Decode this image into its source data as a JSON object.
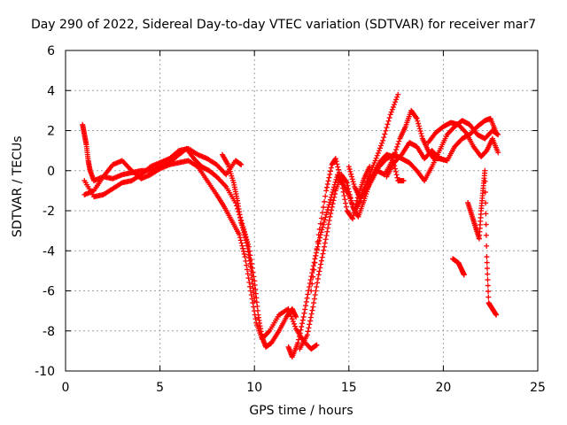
{
  "chart_data": {
    "type": "scatter",
    "title": "Day 290 of 2022, Sidereal Day-to-day VTEC variation (SDTVAR) for receiver mar7",
    "xlabel": "GPS time / hours",
    "ylabel": "SDTVAR / TECUs",
    "xlim": [
      0,
      25
    ],
    "ylim": [
      -10,
      6
    ],
    "xticks": [
      0,
      5,
      10,
      15,
      20,
      25
    ],
    "yticks": [
      -10,
      -8,
      -6,
      -4,
      -2,
      0,
      2,
      4,
      6
    ],
    "grid": true,
    "marker": "+",
    "color": "#ff0000",
    "series": [
      {
        "points": [
          [
            0.9,
            2.3
          ],
          [
            1.0,
            1.8
          ],
          [
            1.1,
            1.3
          ],
          [
            1.2,
            0.5
          ],
          [
            1.3,
            0.0
          ],
          [
            1.5,
            -0.5
          ],
          [
            2.0,
            -0.3
          ],
          [
            2.5,
            -0.4
          ],
          [
            3.0,
            -0.2
          ],
          [
            3.5,
            -0.1
          ],
          [
            4.0,
            0.0
          ],
          [
            4.5,
            0.0
          ],
          [
            5.0,
            0.2
          ],
          [
            5.5,
            0.4
          ],
          [
            6.0,
            0.8
          ],
          [
            6.4,
            1.1
          ],
          [
            6.8,
            0.6
          ],
          [
            7.2,
            0.2
          ],
          [
            7.6,
            0.0
          ],
          [
            8.0,
            -0.3
          ],
          [
            8.5,
            -0.8
          ],
          [
            9.0,
            -1.6
          ],
          [
            9.4,
            -2.8
          ],
          [
            9.7,
            -3.8
          ],
          [
            10.0,
            -5.5
          ],
          [
            10.2,
            -7.2
          ],
          [
            10.4,
            -8.3
          ],
          [
            10.6,
            -8.8
          ],
          [
            10.9,
            -8.6
          ],
          [
            11.3,
            -8.0
          ],
          [
            11.7,
            -7.3
          ],
          [
            12.0,
            -6.9
          ],
          [
            12.2,
            -7.3
          ]
        ]
      },
      {
        "points": [
          [
            1.0,
            -1.2
          ],
          [
            1.5,
            -1.0
          ],
          [
            2.0,
            -0.3
          ],
          [
            2.5,
            0.3
          ],
          [
            3.0,
            0.5
          ],
          [
            3.5,
            0.0
          ],
          [
            4.0,
            -0.4
          ],
          [
            4.5,
            -0.2
          ],
          [
            5.0,
            0.1
          ],
          [
            5.5,
            0.3
          ],
          [
            6.0,
            0.4
          ],
          [
            6.5,
            0.5
          ],
          [
            7.0,
            0.2
          ],
          [
            7.5,
            -0.5
          ],
          [
            8.0,
            -1.2
          ],
          [
            8.4,
            -1.8
          ],
          [
            8.8,
            -2.5
          ],
          [
            9.2,
            -3.2
          ],
          [
            9.5,
            -4.3
          ],
          [
            9.8,
            -6.0
          ],
          [
            10.1,
            -7.6
          ],
          [
            10.4,
            -8.4
          ],
          [
            10.8,
            -8.0
          ],
          [
            11.3,
            -7.2
          ],
          [
            11.8,
            -6.9
          ],
          [
            12.2,
            -7.9
          ],
          [
            12.6,
            -8.5
          ],
          [
            13.0,
            -8.9
          ],
          [
            13.3,
            -8.7
          ]
        ]
      },
      {
        "points": [
          [
            1.0,
            -0.5
          ],
          [
            1.5,
            -1.3
          ],
          [
            2.0,
            -1.2
          ],
          [
            2.5,
            -0.9
          ],
          [
            3.0,
            -0.6
          ],
          [
            3.5,
            -0.5
          ],
          [
            4.0,
            -0.2
          ],
          [
            4.5,
            0.2
          ],
          [
            5.0,
            0.4
          ],
          [
            5.5,
            0.6
          ],
          [
            6.0,
            1.0
          ],
          [
            6.5,
            1.1
          ],
          [
            7.0,
            0.8
          ],
          [
            7.5,
            0.6
          ],
          [
            8.0,
            0.3
          ],
          [
            8.5,
            -0.2
          ],
          [
            9.0,
            0.5
          ],
          [
            9.3,
            0.3
          ]
        ]
      },
      {
        "points": [
          [
            8.3,
            0.8
          ],
          [
            8.6,
            0.3
          ],
          [
            8.9,
            -0.6
          ],
          [
            9.1,
            -1.5
          ],
          [
            9.3,
            -2.6
          ],
          [
            9.6,
            -3.6
          ],
          [
            9.8,
            -4.8
          ],
          [
            10.0,
            -6.5
          ]
        ]
      },
      {
        "points": [
          [
            11.8,
            -8.8
          ],
          [
            12.0,
            -9.3
          ],
          [
            12.3,
            -8.6
          ],
          [
            12.6,
            -7.3
          ],
          [
            12.9,
            -5.8
          ],
          [
            13.2,
            -4.4
          ],
          [
            13.5,
            -3.2
          ],
          [
            13.8,
            -2.2
          ],
          [
            14.1,
            -1.2
          ],
          [
            14.4,
            -0.2
          ],
          [
            14.7,
            -0.7
          ],
          [
            15.0,
            -1.2
          ],
          [
            15.3,
            -2.0
          ],
          [
            15.6,
            -1.5
          ],
          [
            16.0,
            -0.4
          ],
          [
            16.4,
            0.5
          ],
          [
            16.8,
            1.5
          ],
          [
            17.2,
            2.8
          ],
          [
            17.6,
            3.8
          ]
        ]
      },
      {
        "points": [
          [
            12.4,
            -8.9
          ],
          [
            12.8,
            -8.2
          ],
          [
            13.1,
            -6.8
          ],
          [
            13.4,
            -5.2
          ],
          [
            13.7,
            -3.8
          ],
          [
            14.0,
            -2.3
          ],
          [
            14.3,
            -1.0
          ],
          [
            14.6,
            -0.2
          ],
          [
            14.9,
            -0.6
          ],
          [
            15.2,
            -1.8
          ],
          [
            15.5,
            -2.3
          ],
          [
            15.8,
            -1.5
          ],
          [
            16.1,
            -0.6
          ],
          [
            16.4,
            0.0
          ],
          [
            16.7,
            0.5
          ],
          [
            17.0,
            0.8
          ],
          [
            17.3,
            0.7
          ],
          [
            17.6,
            -0.5
          ],
          [
            17.9,
            -0.5
          ]
        ]
      },
      {
        "points": [
          [
            13.0,
            -6.0
          ],
          [
            13.4,
            -3.2
          ],
          [
            13.8,
            -1.0
          ],
          [
            14.1,
            0.3
          ],
          [
            14.3,
            0.6
          ],
          [
            14.6,
            -0.5
          ],
          [
            14.9,
            -2.0
          ],
          [
            15.2,
            -2.4
          ],
          [
            15.5,
            -1.2
          ],
          [
            15.8,
            -0.4
          ],
          [
            16.1,
            0.2
          ]
        ]
      },
      {
        "points": [
          [
            15.0,
            0.2
          ],
          [
            15.3,
            -0.8
          ],
          [
            15.6,
            -1.4
          ],
          [
            15.9,
            -0.8
          ],
          [
            16.2,
            -0.3
          ],
          [
            16.5,
            0.0
          ],
          [
            16.9,
            -0.2
          ],
          [
            17.3,
            0.5
          ],
          [
            17.7,
            1.6
          ],
          [
            18.0,
            2.2
          ],
          [
            18.3,
            3.0
          ],
          [
            18.6,
            2.6
          ],
          [
            18.9,
            1.6
          ],
          [
            19.2,
            1.0
          ],
          [
            19.5,
            0.6
          ],
          [
            19.9,
            0.6
          ]
        ]
      },
      {
        "points": [
          [
            15.8,
            -1.2
          ],
          [
            16.2,
            -0.5
          ],
          [
            16.6,
            0.2
          ],
          [
            17.0,
            0.6
          ],
          [
            17.4,
            0.8
          ],
          [
            17.8,
            0.6
          ],
          [
            18.2,
            0.4
          ],
          [
            18.6,
            0.0
          ],
          [
            19.0,
            -0.5
          ],
          [
            19.4,
            0.2
          ],
          [
            19.8,
            1.0
          ],
          [
            20.2,
            1.8
          ],
          [
            20.6,
            2.2
          ],
          [
            21.0,
            2.5
          ],
          [
            21.4,
            2.3
          ],
          [
            21.8,
            1.8
          ],
          [
            22.2,
            1.6
          ],
          [
            22.6,
            2.0
          ],
          [
            22.9,
            1.8
          ]
        ]
      },
      {
        "points": [
          [
            17.0,
            -0.3
          ],
          [
            17.4,
            0.4
          ],
          [
            17.8,
            0.8
          ],
          [
            18.2,
            1.4
          ],
          [
            18.6,
            1.2
          ],
          [
            19.0,
            0.6
          ],
          [
            19.4,
            1.0
          ],
          [
            19.8,
            0.6
          ],
          [
            20.2,
            0.5
          ],
          [
            20.6,
            1.2
          ],
          [
            21.0,
            1.6
          ],
          [
            21.4,
            1.8
          ],
          [
            21.8,
            2.2
          ],
          [
            22.2,
            2.5
          ],
          [
            22.5,
            2.6
          ],
          [
            22.8,
            1.9
          ]
        ]
      },
      {
        "points": [
          [
            19.2,
            1.4
          ],
          [
            19.6,
            1.9
          ],
          [
            20.0,
            2.2
          ],
          [
            20.4,
            2.4
          ],
          [
            20.8,
            2.3
          ],
          [
            21.2,
            1.9
          ],
          [
            21.6,
            1.2
          ],
          [
            22.0,
            0.7
          ],
          [
            22.3,
            1.0
          ],
          [
            22.6,
            1.6
          ],
          [
            22.9,
            0.9
          ]
        ]
      },
      {
        "points": [
          [
            21.3,
            -1.6
          ],
          [
            21.5,
            -2.2
          ],
          [
            21.7,
            -2.8
          ],
          [
            21.9,
            -3.4
          ],
          [
            22.0,
            -2.0
          ],
          [
            22.1,
            -1.0
          ],
          [
            22.2,
            0.0
          ],
          [
            22.3,
            -4.3
          ],
          [
            22.4,
            -6.6
          ],
          [
            22.6,
            -6.9
          ],
          [
            22.8,
            -7.2
          ]
        ]
      },
      {
        "points": [
          [
            20.5,
            -4.4
          ],
          [
            20.8,
            -4.6
          ],
          [
            21.0,
            -5.0
          ],
          [
            21.1,
            -5.2
          ]
        ]
      }
    ]
  }
}
